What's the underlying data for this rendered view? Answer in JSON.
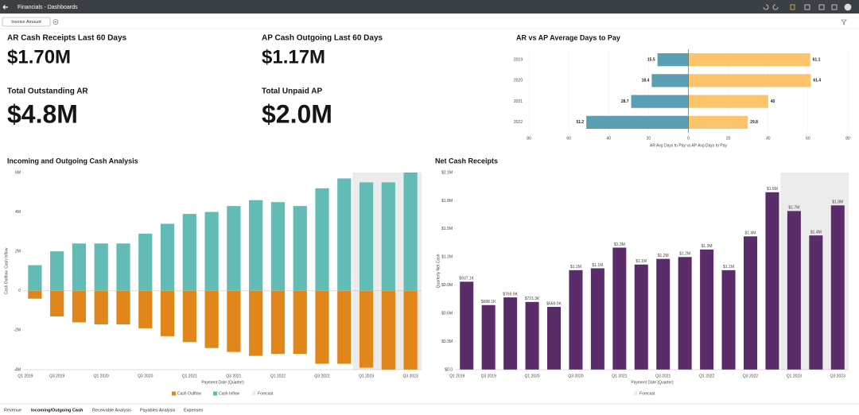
{
  "header": {
    "title": "Financials - Dashboards"
  },
  "filter": {
    "label": "Invoice Amount"
  },
  "kpis": [
    {
      "title": "AR Cash Receipts Last 60 Days",
      "value": "$1.70M"
    },
    {
      "title": "AP Cash Outgoing Last 60 Days",
      "value": "$1.17M"
    },
    {
      "title": "Total Outstanding AR",
      "value": "$4.8M"
    },
    {
      "title": "Total Unpaid AP",
      "value": "$2.0M"
    }
  ],
  "chart_data": [
    {
      "type": "hbar",
      "title": "AR vs AP Average Days to Pay",
      "categories": [
        "2019",
        "2020",
        "2021",
        "2022"
      ],
      "series": [
        {
          "color": "#5b9fb5",
          "values": [
            -15.5,
            -18.4,
            -28.7,
            -51.2
          ],
          "value_labels": [
            "15.5",
            "18.4",
            "28.7",
            "51.2"
          ]
        },
        {
          "color": "#fcc46b",
          "values": [
            61.1,
            61.4,
            40,
            29.8
          ]
        }
      ],
      "xlim": [
        -80,
        80
      ],
      "xticks": [
        {
          "value": -80,
          "label": "80"
        },
        {
          "value": -60,
          "label": "60"
        },
        {
          "value": -40,
          "label": "40"
        },
        {
          "value": -20,
          "label": "20"
        },
        0,
        20,
        40,
        60,
        80
      ],
      "xlabel": "AR Avg Days to Pay vs AP Avg Days to Pay",
      "grid": true
    },
    {
      "type": "bar",
      "title": "Incoming and Outgoing Cash Analysis",
      "categories": [
        "Q1 2019",
        "Q3 2019",
        null,
        "Q1 2020",
        null,
        "Q3 2020",
        null,
        "Q1 2021",
        null,
        "Q3 2021",
        null,
        "Q1 2022",
        null,
        "Q3 2022",
        null,
        "Q1 2023",
        null,
        "Q3 2023"
      ],
      "series": [
        {
          "name": "Cash Outflow",
          "color": "#e0861a",
          "values": [
            -400000,
            -1300000,
            -1600000,
            -1700000,
            -1700000,
            -1900000,
            -2300000,
            -2600000,
            -2900000,
            -3100000,
            -3300000,
            -3200000,
            -3200000,
            -3700000,
            -3700000,
            -3900000,
            -4000000,
            -4000000
          ]
        },
        {
          "name": "Cash Inflow",
          "color": "#62bbb5",
          "values": [
            1300000,
            2000000,
            2400000,
            2400000,
            2400000,
            2900000,
            3400000,
            3900000,
            4000000,
            4300000,
            4600000,
            4500000,
            4300000,
            5200000,
            5700000,
            5500000,
            5500000,
            6000000
          ]
        }
      ],
      "ylim": [
        -4000000,
        6000000
      ],
      "yticks": [
        {
          "value": -4000000,
          "label": "-4M"
        },
        {
          "value": -2000000,
          "label": "-2M"
        },
        0,
        {
          "value": 2000000,
          "label": "2M"
        },
        {
          "value": 4000000,
          "label": "4M"
        },
        {
          "value": 6000000,
          "label": "6M"
        }
      ],
      "xlabel": "Payment Date (Quarter)",
      "ylabel": "Cash Outflow, Cash Inflow",
      "forecast": {
        "name": "Forecast",
        "color": "#ececec",
        "from": "Q1 2023"
      }
    },
    {
      "type": "bar",
      "title": "Net Cash Receipts",
      "categories": [
        "Q1 2019",
        "Q3 2019",
        null,
        "Q1 2020",
        null,
        "Q3 2020",
        null,
        "Q1 2021",
        null,
        "Q3 2021",
        null,
        "Q1 2022",
        null,
        "Q3 2022",
        null,
        "Q1 2023",
        null,
        "Q3 2023"
      ],
      "series": [
        {
          "color": "#5a2d6a",
          "values": [
            937100,
            688100,
            769900,
            721300,
            669000,
            1060000,
            1080000,
            1300000,
            1120000,
            1180000,
            1200000,
            1280000,
            1060000,
            1420000,
            1890000,
            1690000,
            1430000,
            1750000
          ],
          "value_labels": [
            "$937.1K",
            "$688.1K",
            "$769.9K",
            "$721.3K",
            "$669.0K",
            "$1.1M",
            "$1.1M",
            "$1.3M",
            "$1.1M",
            "$1.2M",
            "$1.2M",
            "$1.3M",
            "$1.1M",
            "$1.4M",
            "$1.9M",
            "$1.7M",
            "$1.4M",
            "$1.8M"
          ]
        }
      ],
      "ylim": [
        0,
        2100000
      ],
      "yticks": [
        {
          "value": 0,
          "label": "$0.0"
        },
        {
          "value": 300000,
          "label": "$0.3M"
        },
        {
          "value": 600000,
          "label": "$0.6M"
        },
        {
          "value": 900000,
          "label": "$0.9M"
        },
        {
          "value": 1200000,
          "label": "$1.2M"
        },
        {
          "value": 1500000,
          "label": "$1.5M"
        },
        {
          "value": 1800000,
          "label": "$1.8M"
        },
        {
          "value": 2100000,
          "label": "$2.1M"
        }
      ],
      "xlabel": "Payment Date (Quarter)",
      "ylabel": "Quarterly Net Cash",
      "forecast": {
        "name": "Forecast",
        "color": "#ececec",
        "from": "Q1 2023"
      }
    }
  ],
  "tabs": [
    {
      "label": "Revenue"
    },
    {
      "label": "Incoming/Outgoing Cash",
      "active": true
    },
    {
      "label": "Receivable Analysis"
    },
    {
      "label": "Payables Analysis"
    },
    {
      "label": "Expenses"
    }
  ]
}
